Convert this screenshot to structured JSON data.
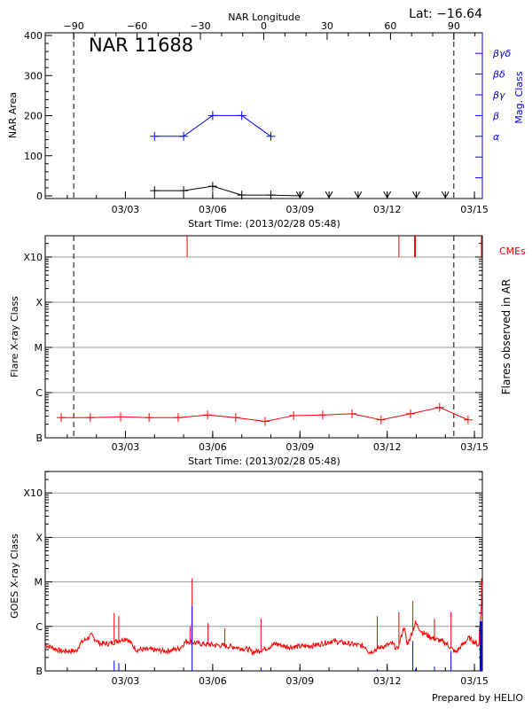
{
  "chart_data": [
    {
      "type": "line",
      "title": "NAR 11688",
      "lat_label": "Lat: −16.64",
      "top_axis_label": "NAR Longitude",
      "top_ticks": [
        "−90",
        "−60",
        "−30",
        "0",
        "30",
        "60",
        "90"
      ],
      "top_tick_values": [
        -90,
        -60,
        -30,
        0,
        30,
        60,
        90
      ],
      "limb_crossings": [
        "03/01 05:20",
        "03/14 07:00"
      ],
      "xlabel": "Start Time: (2013/02/28 05:48)",
      "x_range": [
        "02/28 05:48",
        "03/15 06:45"
      ],
      "x_ticks": [
        "03/03",
        "03/06",
        "03/09",
        "03/12",
        "03/15"
      ],
      "ylabel": "NAR Area",
      "ylim": [
        0,
        400
      ],
      "y_ticks": [
        "0",
        "100",
        "200",
        "300",
        "400"
      ],
      "y2label": "Mag. Class",
      "y2_ticks": [
        "α",
        "β",
        "βγ",
        "βδ",
        "βγδ"
      ],
      "area": {
        "color": "#000000",
        "dates": [
          "03/04 00:00",
          "03/05 00:00",
          "03/06 00:00",
          "03/07 00:00",
          "03/08 00:00",
          "03/09 00:00"
        ],
        "values": [
          13,
          13,
          24,
          2,
          2,
          0
        ]
      },
      "below_detection_dates": [
        "03/09 00:00",
        "03/10 00:00",
        "03/11 00:00",
        "03/12 00:00",
        "03/13 00:00",
        "03/14 00:00"
      ],
      "mag_class": {
        "color": "#0000ff",
        "dates": [
          "03/04 00:00",
          "03/05 00:00",
          "03/06 00:00",
          "03/07 00:00",
          "03/08 00:00"
        ],
        "values": [
          "α",
          "α",
          "β",
          "β",
          "α"
        ]
      }
    },
    {
      "type": "line",
      "xlabel": "Start Time: (2013/02/28 05:48)",
      "x_ticks": [
        "03/03",
        "03/06",
        "03/09",
        "03/12",
        "03/15"
      ],
      "ylabel": "Flare X-ray Class",
      "y2label": "Flares observed in AR",
      "y_ticks": [
        "B",
        "C",
        "M",
        "X",
        "X10"
      ],
      "grid": true,
      "flares": {
        "color": "#ff0000",
        "dates": [
          "02/28 19:00",
          "03/01 19:00",
          "03/02 20:00",
          "03/03 19:30",
          "03/04 19:30",
          "03/05 19:45",
          "03/06 19:00",
          "03/07 19:15",
          "03/08 18:45",
          "03/09 18:45",
          "03/10 19:00",
          "03/11 19:00",
          "03/12 19:15",
          "03/13 19:15",
          "03/14 18:45"
        ],
        "values": [
          "B2.8",
          "B2.8",
          "B2.9",
          "B2.8",
          "B2.8",
          "B3.2",
          "B2.8",
          "B2.3",
          "B3.1",
          "B3.2",
          "B3.4",
          "B2.5",
          "B3.4",
          "B4.7",
          "B2.5"
        ]
      },
      "cme_label": "CMEs",
      "cmes": {
        "color": "#ff0000",
        "dates": [
          "03/05 02:55",
          "03/12 09:40",
          "03/12 22:55",
          "03/15 05:50"
        ]
      }
    },
    {
      "type": "line",
      "x_ticks": [
        "03/03",
        "03/06",
        "03/09",
        "03/12",
        "03/15"
      ],
      "ylabel": "GOES X-ray Class",
      "y_ticks": [
        "B",
        "C",
        "M",
        "X",
        "X10"
      ],
      "grid": true,
      "footer": "Prepared by HELIO",
      "flux": {
        "color": "#ff0000",
        "dates": [
          "02/28 06:00",
          "02/28 19:00",
          "03/01 07:30",
          "03/01 10:30",
          "03/01 20:00",
          "03/02 02:45",
          "03/02 11:00",
          "03/03 00:45",
          "03/03 09:00",
          "03/03 20:00",
          "03/04 09:40",
          "03/04 20:40",
          "03/05 02:10",
          "03/05 13:00",
          "03/06 02:40",
          "03/06 16:30",
          "03/07 06:15",
          "03/07 09:00",
          "03/07 20:00",
          "03/08 04:10",
          "03/08 12:30",
          "03/08 23:20",
          "03/09 13:00",
          "03/10 02:50",
          "03/10 16:30",
          "03/11 06:15",
          "03/11 09:00",
          "03/11 20:00",
          "03/12 04:20",
          "03/12 08:30",
          "03/12 14:00",
          "03/12 16:30",
          "03/12 23:20",
          "03/13 04:50",
          "03/13 13:15",
          "03/14 00:00",
          "03/14 08:30",
          "03/14 19:20",
          "03/15 03:40",
          "03/15 06:45"
        ],
        "values": [
          "B3.8",
          "B2.8",
          "B2.8",
          "B4.1",
          "B6.3",
          "B4.1",
          "B4.1",
          "B5.5",
          "B3.0",
          "B3.0",
          "B2.8",
          "B3.2",
          "B4.7",
          "B4.1",
          "B3.8",
          "B3.5",
          "B3.0",
          "B2.6",
          "B3.2",
          "B4.1",
          "B3.5",
          "B3.5",
          "B3.8",
          "B4.7",
          "B4.1",
          "B3.5",
          "B2.6",
          "B3.5",
          "B4.1",
          "B3.0",
          "C1.0",
          "B3.8",
          "C1.2",
          "B7.4",
          "B5.5",
          "B4.3",
          "B2.6",
          "B5.5",
          "B3.8",
          "M1.0"
        ],
        "peak_dates": [
          "03/02 14:40",
          "03/02 18:30",
          "03/05 05:20",
          "03/05 07:00",
          "03/05 20:10",
          "03/06 10:00",
          "03/07 15:50",
          "03/11 15:50",
          "03/12 09:40",
          "03/12 21:10",
          "03/13 15:00",
          "03/14 04:40",
          "03/15 05:50"
        ],
        "peak_values": [
          "C2.0",
          "C1.7",
          "C1.0",
          "M1.2",
          "C1.2",
          "B9.0",
          "C1.5",
          "C1.7",
          "C2.1",
          "C3.7",
          "C1.5",
          "C2.1",
          "M1.2"
        ]
      },
      "events": {
        "color": "#0000ff",
        "dates": [
          "03/02 14:40",
          "03/02 18:30",
          "03/05 07:00",
          "03/07 15:50",
          "03/11 15:50",
          "03/12 21:10",
          "03/12 23:20",
          "03/13 15:00",
          "03/14 04:40",
          "03/15 05:00",
          "03/15 05:50"
        ],
        "values": [
          "B1.7",
          "B1.5",
          "C2.9",
          "B1.2",
          "B1.1",
          "B4.7",
          "B1.1",
          "B1.25",
          "B2.8",
          "C1.3",
          "C1.3"
        ]
      }
    }
  ]
}
